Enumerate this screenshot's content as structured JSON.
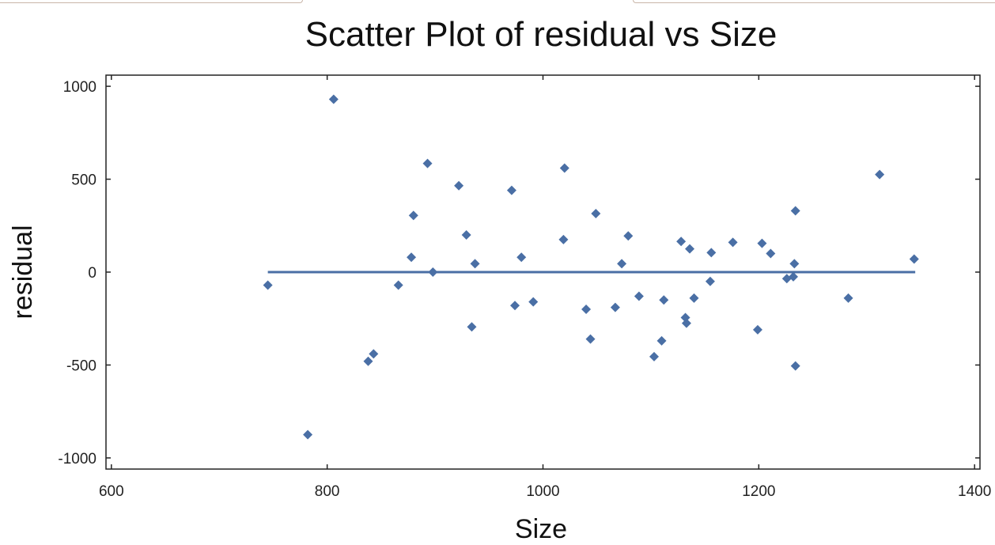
{
  "chart_data": {
    "type": "scatter",
    "title": "Scatter Plot of residual vs Size",
    "xlabel": "Size",
    "ylabel": "residual",
    "xlim": [
      595,
      1405
    ],
    "ylim": [
      -1060,
      1060
    ],
    "xticks": [
      600,
      800,
      1000,
      1200,
      1400
    ],
    "yticks": [
      1000,
      500,
      0,
      -500,
      -1000
    ],
    "xtick_labels": [
      "600",
      "800",
      "1000",
      "1200",
      "1400"
    ],
    "ytick_labels": [
      "1000",
      "500",
      "0",
      "-500",
      "-1000"
    ],
    "grid": false,
    "marker_color": "#4a6fa5",
    "line_color": "#4a6fa5",
    "fit_line": {
      "x": [
        745,
        1345
      ],
      "y": [
        0,
        0
      ]
    },
    "points": [
      {
        "x": 745,
        "y": -70
      },
      {
        "x": 782,
        "y": -875
      },
      {
        "x": 806,
        "y": 930
      },
      {
        "x": 838,
        "y": -480
      },
      {
        "x": 843,
        "y": -440
      },
      {
        "x": 866,
        "y": -70
      },
      {
        "x": 878,
        "y": 80
      },
      {
        "x": 880,
        "y": 305
      },
      {
        "x": 893,
        "y": 585
      },
      {
        "x": 898,
        "y": 0
      },
      {
        "x": 922,
        "y": 465
      },
      {
        "x": 929,
        "y": 200
      },
      {
        "x": 934,
        "y": -295
      },
      {
        "x": 937,
        "y": 45
      },
      {
        "x": 971,
        "y": 440
      },
      {
        "x": 974,
        "y": -180
      },
      {
        "x": 980,
        "y": 80
      },
      {
        "x": 991,
        "y": -160
      },
      {
        "x": 1019,
        "y": 175
      },
      {
        "x": 1020,
        "y": 560
      },
      {
        "x": 1040,
        "y": -200
      },
      {
        "x": 1044,
        "y": -360
      },
      {
        "x": 1049,
        "y": 315
      },
      {
        "x": 1067,
        "y": -190
      },
      {
        "x": 1073,
        "y": 45
      },
      {
        "x": 1079,
        "y": 195
      },
      {
        "x": 1089,
        "y": -130
      },
      {
        "x": 1103,
        "y": -455
      },
      {
        "x": 1110,
        "y": -370
      },
      {
        "x": 1112,
        "y": -150
      },
      {
        "x": 1128,
        "y": 165
      },
      {
        "x": 1132,
        "y": -245
      },
      {
        "x": 1133,
        "y": -275
      },
      {
        "x": 1136,
        "y": 125
      },
      {
        "x": 1140,
        "y": -140
      },
      {
        "x": 1155,
        "y": -50
      },
      {
        "x": 1156,
        "y": 105
      },
      {
        "x": 1176,
        "y": 160
      },
      {
        "x": 1199,
        "y": -310
      },
      {
        "x": 1203,
        "y": 155
      },
      {
        "x": 1211,
        "y": 100
      },
      {
        "x": 1226,
        "y": -35
      },
      {
        "x": 1232,
        "y": -25
      },
      {
        "x": 1233,
        "y": 45
      },
      {
        "x": 1234,
        "y": 330
      },
      {
        "x": 1234,
        "y": -505
      },
      {
        "x": 1283,
        "y": -140
      },
      {
        "x": 1312,
        "y": 525
      },
      {
        "x": 1344,
        "y": 70
      }
    ]
  }
}
